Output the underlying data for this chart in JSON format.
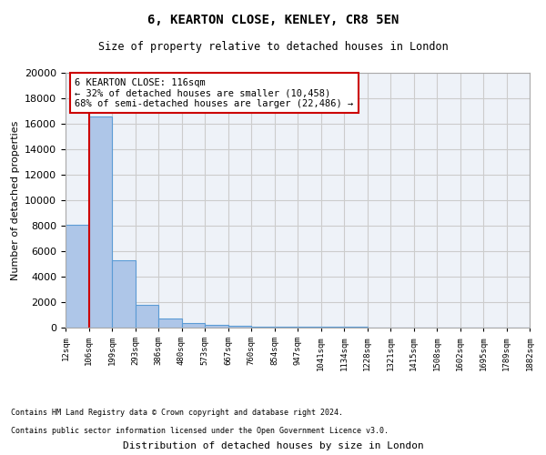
{
  "title": "6, KEARTON CLOSE, KENLEY, CR8 5EN",
  "subtitle": "Size of property relative to detached houses in London",
  "xlabel": "Distribution of detached houses by size in London",
  "ylabel": "Number of detached properties",
  "annotation_title": "6 KEARTON CLOSE: 116sqm",
  "annotation_line1": "← 32% of detached houses are smaller (10,458)",
  "annotation_line2": "68% of semi-detached houses are larger (22,486) →",
  "property_bin": 1,
  "footer1": "Contains HM Land Registry data © Crown copyright and database right 2024.",
  "footer2": "Contains public sector information licensed under the Open Government Licence v3.0.",
  "bin_labels": [
    "12sqm",
    "106sqm",
    "199sqm",
    "293sqm",
    "386sqm",
    "480sqm",
    "573sqm",
    "667sqm",
    "760sqm",
    "854sqm",
    "947sqm",
    "1041sqm",
    "1134sqm",
    "1228sqm",
    "1321sqm",
    "1415sqm",
    "1508sqm",
    "1602sqm",
    "1695sqm",
    "1789sqm",
    "1882sqm"
  ],
  "bar_values": [
    8100,
    16600,
    5300,
    1800,
    700,
    380,
    250,
    160,
    100,
    80,
    60,
    50,
    40,
    35,
    30,
    25,
    20,
    15,
    10,
    8
  ],
  "bar_color": "#aec6e8",
  "bar_edge_color": "#5b9bd5",
  "line_color": "#cc0000",
  "annotation_box_color": "#ffffff",
  "annotation_box_edge": "#cc0000",
  "ylim": [
    0,
    20000
  ],
  "grid_color": "#cccccc",
  "background_color": "#eef2f8"
}
